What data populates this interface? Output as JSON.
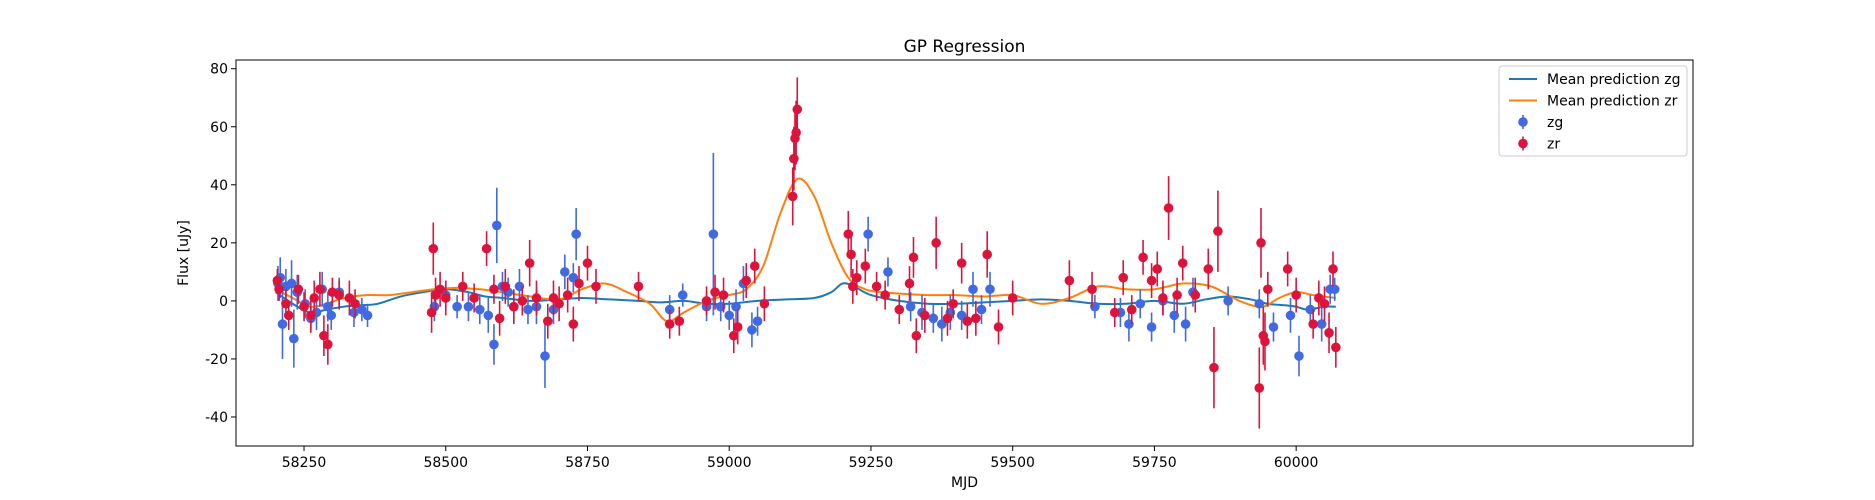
{
  "chart_data": {
    "type": "scatter",
    "title": "GP Regression",
    "xlabel": "MJD",
    "ylabel": "Flux [uJy]",
    "xlim": [
      58130,
      60700
    ],
    "ylim": [
      -50,
      83
    ],
    "xticks": [
      58250,
      58500,
      58750,
      59000,
      59250,
      59500,
      59750,
      60000
    ],
    "yticks": [
      -40,
      -20,
      0,
      20,
      40,
      60,
      80
    ],
    "grid": false,
    "legend_position": "top-right",
    "colors": {
      "zg": "#4169e1",
      "zr": "#dc143c",
      "mean_zg": "#1f77b4",
      "mean_zr": "#ff7f0e"
    },
    "lines": [
      {
        "name": "Mean prediction zg",
        "x": [
          58200,
          58230,
          58260,
          58290,
          58320,
          58350,
          58380,
          58420,
          58460,
          58500,
          58540,
          58570,
          58600,
          58650,
          58700,
          58740,
          58790,
          58840,
          58880,
          58920,
          58960,
          59000,
          59050,
          59100,
          59150,
          59180,
          59200,
          59220,
          59250,
          59300,
          59350,
          59400,
          59450,
          59500,
          59550,
          59600,
          59650,
          59700,
          59750,
          59800,
          59840,
          59880,
          59920,
          59950,
          59980,
          60000,
          60020,
          60050,
          60070
        ],
        "y": [
          3,
          -1,
          -4,
          -3,
          -2,
          -1.5,
          -1,
          1.5,
          3,
          4,
          3,
          1.5,
          1,
          0,
          0.5,
          1,
          0.5,
          0,
          -0.5,
          0,
          -1,
          -1,
          0,
          0.5,
          1,
          3,
          6,
          5,
          2,
          0,
          -1,
          -1,
          -0.5,
          0,
          0.5,
          0,
          -1,
          -1,
          0,
          -1,
          0.5,
          1.5,
          0.5,
          -1,
          -1.5,
          -2,
          -3,
          -2,
          -2
        ]
      },
      {
        "name": "Mean prediction zr",
        "x": [
          58200,
          58230,
          58260,
          58290,
          58320,
          58360,
          58400,
          58440,
          58480,
          58520,
          58560,
          58600,
          58650,
          58700,
          58740,
          58780,
          58820,
          58860,
          58890,
          58920,
          58960,
          59000,
          59030,
          59060,
          59090,
          59120,
          59150,
          59180,
          59210,
          59240,
          59270,
          59300,
          59350,
          59400,
          59450,
          59500,
          59550,
          59600,
          59650,
          59700,
          59750,
          59800,
          59850,
          59900,
          59940,
          59970,
          60000,
          60030,
          60070
        ],
        "y": [
          4,
          1,
          -2,
          -1,
          1,
          2,
          2,
          3,
          4,
          4.5,
          4,
          3,
          1.5,
          0.5,
          4,
          6,
          3,
          -1,
          -7,
          -4,
          0,
          2,
          4,
          12,
          30,
          42,
          36,
          20,
          8,
          4,
          3,
          2.5,
          2,
          2,
          1.5,
          2,
          -1,
          1,
          5,
          4,
          4,
          6,
          5,
          0,
          -2,
          1,
          3,
          2,
          1
        ]
      }
    ],
    "series": [
      {
        "name": "zg",
        "points": [
          [
            58204,
            6,
            6
          ],
          [
            58208,
            8,
            7
          ],
          [
            58212,
            -8,
            12
          ],
          [
            58218,
            5,
            6
          ],
          [
            58228,
            6,
            8
          ],
          [
            58232,
            -13,
            10
          ],
          [
            58238,
            3,
            6
          ],
          [
            58252,
            -1,
            5
          ],
          [
            58262,
            -6,
            4
          ],
          [
            58272,
            -4,
            6
          ],
          [
            58282,
            4,
            6
          ],
          [
            58292,
            -2,
            5
          ],
          [
            58298,
            -5,
            5
          ],
          [
            58312,
            3,
            5
          ],
          [
            58338,
            -4,
            5
          ],
          [
            58352,
            -3,
            4
          ],
          [
            58362,
            -5,
            4
          ],
          [
            58480,
            -2,
            5
          ],
          [
            58500,
            2,
            5
          ],
          [
            58520,
            -2,
            4
          ],
          [
            58540,
            -2,
            5
          ],
          [
            58560,
            -3,
            5
          ],
          [
            58575,
            -5,
            6
          ],
          [
            58585,
            -15,
            7
          ],
          [
            58590,
            26,
            13
          ],
          [
            58600,
            5,
            5
          ],
          [
            58610,
            3,
            5
          ],
          [
            58620,
            -2,
            5
          ],
          [
            58630,
            5,
            6
          ],
          [
            58645,
            -3,
            5
          ],
          [
            58660,
            -2,
            6
          ],
          [
            58675,
            -19,
            11
          ],
          [
            58690,
            -3,
            5
          ],
          [
            58710,
            10,
            6
          ],
          [
            58725,
            8,
            5
          ],
          [
            58730,
            23,
            9
          ],
          [
            58895,
            -3,
            5
          ],
          [
            58918,
            2,
            4
          ],
          [
            58960,
            -2,
            5
          ],
          [
            58972,
            23,
            28
          ],
          [
            58985,
            -2,
            5
          ],
          [
            59000,
            -5,
            5
          ],
          [
            59012,
            -2,
            6
          ],
          [
            59025,
            6,
            6
          ],
          [
            59040,
            -10,
            6
          ],
          [
            59050,
            -7,
            5
          ],
          [
            59245,
            23,
            6
          ],
          [
            59280,
            10,
            5
          ],
          [
            59320,
            -2,
            5
          ],
          [
            59340,
            -4,
            6
          ],
          [
            59360,
            -6,
            5
          ],
          [
            59375,
            -8,
            6
          ],
          [
            59390,
            -4,
            6
          ],
          [
            59410,
            -5,
            5
          ],
          [
            59430,
            4,
            6
          ],
          [
            59445,
            -3,
            5
          ],
          [
            59460,
            4,
            6
          ],
          [
            59645,
            -2,
            4
          ],
          [
            59690,
            -4,
            5
          ],
          [
            59705,
            -8,
            6
          ],
          [
            59725,
            -1,
            5
          ],
          [
            59745,
            -9,
            5
          ],
          [
            59765,
            0,
            5
          ],
          [
            59785,
            -5,
            6
          ],
          [
            59805,
            -8,
            6
          ],
          [
            59818,
            3,
            5
          ],
          [
            59880,
            0,
            5
          ],
          [
            59935,
            -1,
            5
          ],
          [
            59960,
            -9,
            5
          ],
          [
            59990,
            -5,
            6
          ],
          [
            60005,
            -19,
            7
          ],
          [
            60025,
            -3,
            5
          ],
          [
            60045,
            -8,
            6
          ],
          [
            60060,
            4,
            5
          ],
          [
            60068,
            4,
            4
          ]
        ]
      },
      {
        "name": "zr",
        "points": [
          [
            58203,
            7,
            4
          ],
          [
            58206,
            4,
            4
          ],
          [
            58218,
            -1,
            5
          ],
          [
            58223,
            -5,
            5
          ],
          [
            58240,
            4,
            5
          ],
          [
            58250,
            -2,
            5
          ],
          [
            58262,
            -5,
            6
          ],
          [
            58268,
            1,
            6
          ],
          [
            58278,
            4,
            6
          ],
          [
            58285,
            -12,
            7
          ],
          [
            58292,
            -15,
            7
          ],
          [
            58300,
            3,
            5
          ],
          [
            58312,
            2,
            5
          ],
          [
            58330,
            1,
            6
          ],
          [
            58340,
            -1,
            5
          ],
          [
            58475,
            -4,
            7
          ],
          [
            58478,
            18,
            9
          ],
          [
            58482,
            2,
            6
          ],
          [
            58490,
            4,
            6
          ],
          [
            58500,
            1,
            6
          ],
          [
            58530,
            5,
            5
          ],
          [
            58550,
            1,
            5
          ],
          [
            58572,
            18,
            6
          ],
          [
            58585,
            4,
            5
          ],
          [
            58595,
            -6,
            6
          ],
          [
            58605,
            5,
            6
          ],
          [
            58620,
            -2,
            6
          ],
          [
            58635,
            0,
            5
          ],
          [
            58648,
            13,
            8
          ],
          [
            58660,
            1,
            6
          ],
          [
            58680,
            -7,
            6
          ],
          [
            58690,
            1,
            6
          ],
          [
            58700,
            -1,
            6
          ],
          [
            58715,
            2,
            6
          ],
          [
            58725,
            -8,
            6
          ],
          [
            58735,
            6,
            6
          ],
          [
            58750,
            13,
            6
          ],
          [
            58765,
            5,
            6
          ],
          [
            58840,
            5,
            5
          ],
          [
            58895,
            -8,
            5
          ],
          [
            58912,
            -7,
            5
          ],
          [
            58960,
            0,
            5
          ],
          [
            58975,
            3,
            6
          ],
          [
            58990,
            2,
            6
          ],
          [
            59008,
            -12,
            6
          ],
          [
            59015,
            -9,
            6
          ],
          [
            59030,
            7,
            6
          ],
          [
            59045,
            12,
            6
          ],
          [
            59062,
            -1,
            6
          ],
          [
            59120,
            66,
            11
          ],
          [
            59118,
            58,
            11
          ],
          [
            59116,
            56,
            11
          ],
          [
            59114,
            49,
            11
          ],
          [
            59112,
            36,
            10
          ],
          [
            59210,
            23,
            8
          ],
          [
            59215,
            16,
            8
          ],
          [
            59218,
            5,
            6
          ],
          [
            59225,
            8,
            6
          ],
          [
            59240,
            12,
            6
          ],
          [
            59260,
            5,
            5
          ],
          [
            59275,
            2,
            5
          ],
          [
            59300,
            -3,
            5
          ],
          [
            59318,
            6,
            6
          ],
          [
            59325,
            15,
            7
          ],
          [
            59330,
            -12,
            6
          ],
          [
            59345,
            -5,
            6
          ],
          [
            59365,
            20,
            9
          ],
          [
            59385,
            -6,
            6
          ],
          [
            59395,
            -1,
            5
          ],
          [
            59410,
            13,
            7
          ],
          [
            59420,
            -7,
            6
          ],
          [
            59435,
            -6,
            6
          ],
          [
            59455,
            16,
            8
          ],
          [
            59475,
            -9,
            6
          ],
          [
            59500,
            1,
            6
          ],
          [
            59600,
            7,
            7
          ],
          [
            59640,
            4,
            6
          ],
          [
            59680,
            -4,
            5
          ],
          [
            59695,
            8,
            6
          ],
          [
            59710,
            -3,
            5
          ],
          [
            59730,
            15,
            6
          ],
          [
            59745,
            7,
            6
          ],
          [
            59755,
            11,
            6
          ],
          [
            59765,
            1,
            6
          ],
          [
            59775,
            32,
            11
          ],
          [
            59790,
            2,
            6
          ],
          [
            59800,
            13,
            6
          ],
          [
            59822,
            2,
            6
          ],
          [
            59845,
            11,
            7
          ],
          [
            59855,
            -23,
            14
          ],
          [
            59862,
            24,
            14
          ],
          [
            59935,
            -30,
            14
          ],
          [
            59938,
            20,
            12
          ],
          [
            59942,
            -12,
            10
          ],
          [
            59945,
            -14,
            10
          ],
          [
            59950,
            4,
            6
          ],
          [
            59985,
            11,
            6
          ],
          [
            60000,
            2,
            6
          ],
          [
            60030,
            -8,
            5
          ],
          [
            60040,
            1,
            6
          ],
          [
            60050,
            -1,
            6
          ],
          [
            60058,
            -11,
            7
          ],
          [
            60065,
            11,
            6
          ],
          [
            60070,
            -16,
            7
          ]
        ]
      }
    ]
  }
}
